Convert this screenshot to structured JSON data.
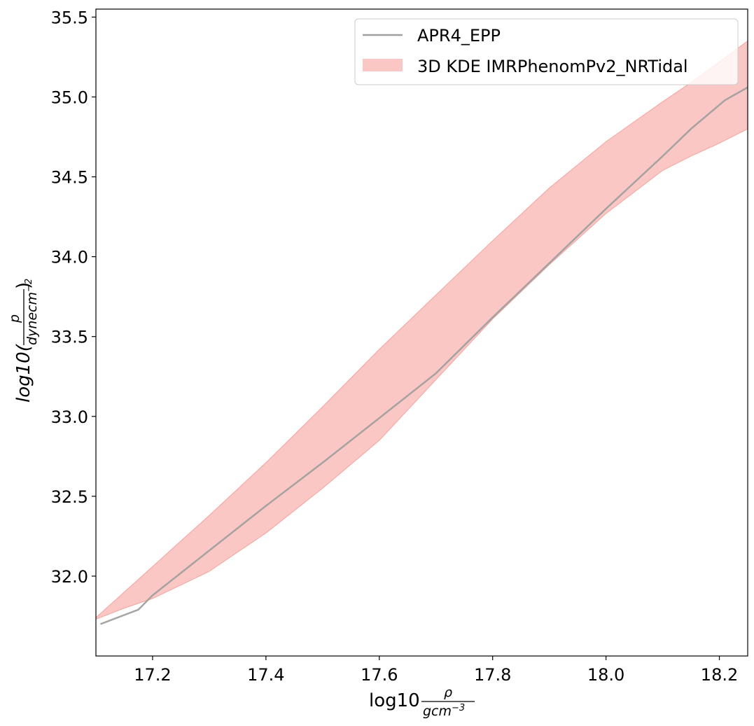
{
  "chart_data": {
    "type": "line",
    "xlabel": {
      "base": "log10",
      "num": "ρ",
      "den": "gcm",
      "den_exp": "−3"
    },
    "ylabel": {
      "base": "log10(",
      "num": "p",
      "den": "dynecm",
      "den_exp": "−2",
      "close": ")"
    },
    "xlim": [
      17.1,
      18.25
    ],
    "ylim": [
      31.5,
      35.55
    ],
    "xticks": [
      17.2,
      17.4,
      17.6,
      17.8,
      18.0,
      18.2
    ],
    "xtick_labels": [
      "17.2",
      "17.4",
      "17.6",
      "17.8",
      "18.0",
      "18.2"
    ],
    "yticks": [
      32.0,
      32.5,
      33.0,
      33.5,
      34.0,
      34.5,
      35.0,
      35.5
    ],
    "ytick_labels": [
      "32.0",
      "32.5",
      "33.0",
      "33.5",
      "34.0",
      "34.5",
      "35.0",
      "35.5"
    ],
    "grid": false,
    "legend_position": "top-right",
    "series": [
      {
        "name": "APR4_EPP",
        "kind": "line",
        "color": "#a0a0a0",
        "x": [
          17.108,
          17.175,
          17.2,
          17.3,
          17.4,
          17.5,
          17.6,
          17.7,
          17.8,
          17.9,
          18.0,
          18.1,
          18.15,
          18.21,
          18.25
        ],
        "y": [
          31.7,
          31.79,
          31.88,
          32.16,
          32.44,
          32.71,
          32.99,
          33.27,
          33.62,
          33.96,
          34.3,
          34.63,
          34.8,
          34.98,
          35.06
        ]
      },
      {
        "name": "3D KDE IMRPhenomPv2_NRTidal",
        "kind": "band",
        "color": "#f8a29c",
        "x": [
          17.1,
          17.15,
          17.2,
          17.3,
          17.4,
          17.5,
          17.6,
          17.7,
          17.8,
          17.9,
          18.0,
          18.1,
          18.15,
          18.2,
          18.25
        ],
        "lower": [
          31.73,
          31.8,
          31.86,
          32.03,
          32.27,
          32.55,
          32.85,
          33.23,
          33.61,
          33.95,
          34.27,
          34.54,
          34.63,
          34.71,
          34.8
        ],
        "upper": [
          31.74,
          31.9,
          32.06,
          32.38,
          32.71,
          33.06,
          33.42,
          33.76,
          34.1,
          34.43,
          34.72,
          34.97,
          35.09,
          35.22,
          35.35
        ]
      }
    ]
  }
}
